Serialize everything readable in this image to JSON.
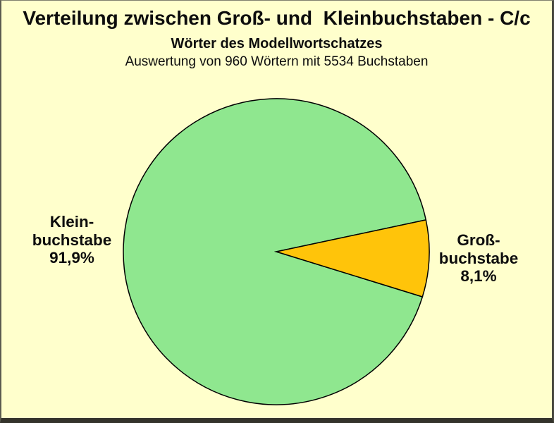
{
  "palette": {
    "background": "#FFFFCC",
    "slice_klein_green": "#8FE78F",
    "slice_gross_orange": "#FFC40A",
    "outline_black": "#000000",
    "text_black": "#0d0d0d"
  },
  "header": {
    "title": "Verteilung zwischen Groß- und  Kleinbuchstaben - C/c",
    "subtitle": "Wörter des Modellwortschatzes",
    "description": "Auswertung von 960 Wörtern mit 5534 Buchstaben"
  },
  "chart_data": {
    "type": "pie",
    "title": "Verteilung zwischen Groß- und Kleinbuchstaben - C/c",
    "subtitle": "Wörter des Modellwortschatzes",
    "annotation": "Auswertung von 960 Wörtern mit 5534 Buchstaben",
    "totals": {
      "woerter": 960,
      "buchstaben": 5534
    },
    "legend_position": "none",
    "labels_outside": true,
    "start_angle_deg": 12,
    "slices": [
      {
        "name": "Kleinbuchstabe",
        "value_pct": 91.9,
        "color": "#8FE78F"
      },
      {
        "name": "Großbuchstabe",
        "value_pct": 8.1,
        "color": "#FFC40A"
      }
    ]
  },
  "labels": {
    "klein": {
      "line1": "Klein-",
      "line2": "buchstabe",
      "line3": "91,9%"
    },
    "gross": {
      "line1": "Groß-",
      "line2": "buchstabe",
      "line3": "8,1%"
    }
  }
}
